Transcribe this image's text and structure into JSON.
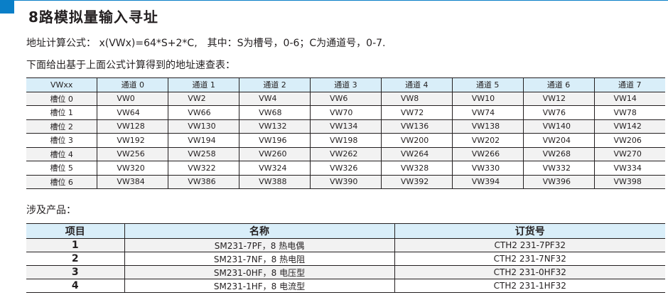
{
  "title": "8路模拟量输入寻址",
  "formula_line": "地址计算公式： x(VWx)=64*S+2*C,　其中：S为槽号，0-6；C为通道号，0-7.",
  "intro_line": "下面给出基于上面公式计算得到的地址速查表：",
  "address_table": {
    "headers": [
      "VWxx",
      "通道 0",
      "通道 1",
      "通道 2",
      "通道 3",
      "通道 4",
      "通道 5",
      "通道 6",
      "通道 7"
    ],
    "rows": [
      [
        "槽位 0",
        "VW0",
        "VW2",
        "VW4",
        "VW6",
        "VW8",
        "VW10",
        "VW12",
        "VW14"
      ],
      [
        "槽位 1",
        "VW64",
        "VW66",
        "VW68",
        "VW70",
        "VW72",
        "VW74",
        "VW76",
        "VW78"
      ],
      [
        "槽位 2",
        "VW128",
        "VW130",
        "VW132",
        "VW134",
        "VW136",
        "VW138",
        "VW140",
        "VW142"
      ],
      [
        "槽位 3",
        "VW192",
        "VW194",
        "VW196",
        "VW198",
        "VW200",
        "VW202",
        "VW204",
        "VW206"
      ],
      [
        "槽位 4",
        "VW256",
        "VW258",
        "VW260",
        "VW262",
        "VW264",
        "VW266",
        "VW268",
        "VW270"
      ],
      [
        "槽位 5",
        "VW320",
        "VW322",
        "VW324",
        "VW326",
        "VW328",
        "VW330",
        "VW332",
        "VW334"
      ],
      [
        "槽位 6",
        "VW384",
        "VW386",
        "VW388",
        "VW390",
        "VW392",
        "VW394",
        "VW396",
        "VW398"
      ]
    ]
  },
  "products_label": "涉及产品：",
  "product_table": {
    "headers": [
      "项目",
      "名称",
      "订货号"
    ],
    "rows": [
      [
        "1",
        "SM231-7PF，8 热电偶",
        "CTH2 231-7PF32"
      ],
      [
        "2",
        "SM231-7NF，8 热电阻",
        "CTH2 231-7NF32"
      ],
      [
        "3",
        "SM231-0HF，8 电压型",
        "CTH2 231-0HF32"
      ],
      [
        "4",
        "SM231-1HF，8 电流型",
        "CTH2 231-1HF32"
      ]
    ]
  },
  "colors": {
    "accent": "#0a7fc8",
    "header_bg": "#d9eef9",
    "row_alt": "#f2f2f2"
  }
}
